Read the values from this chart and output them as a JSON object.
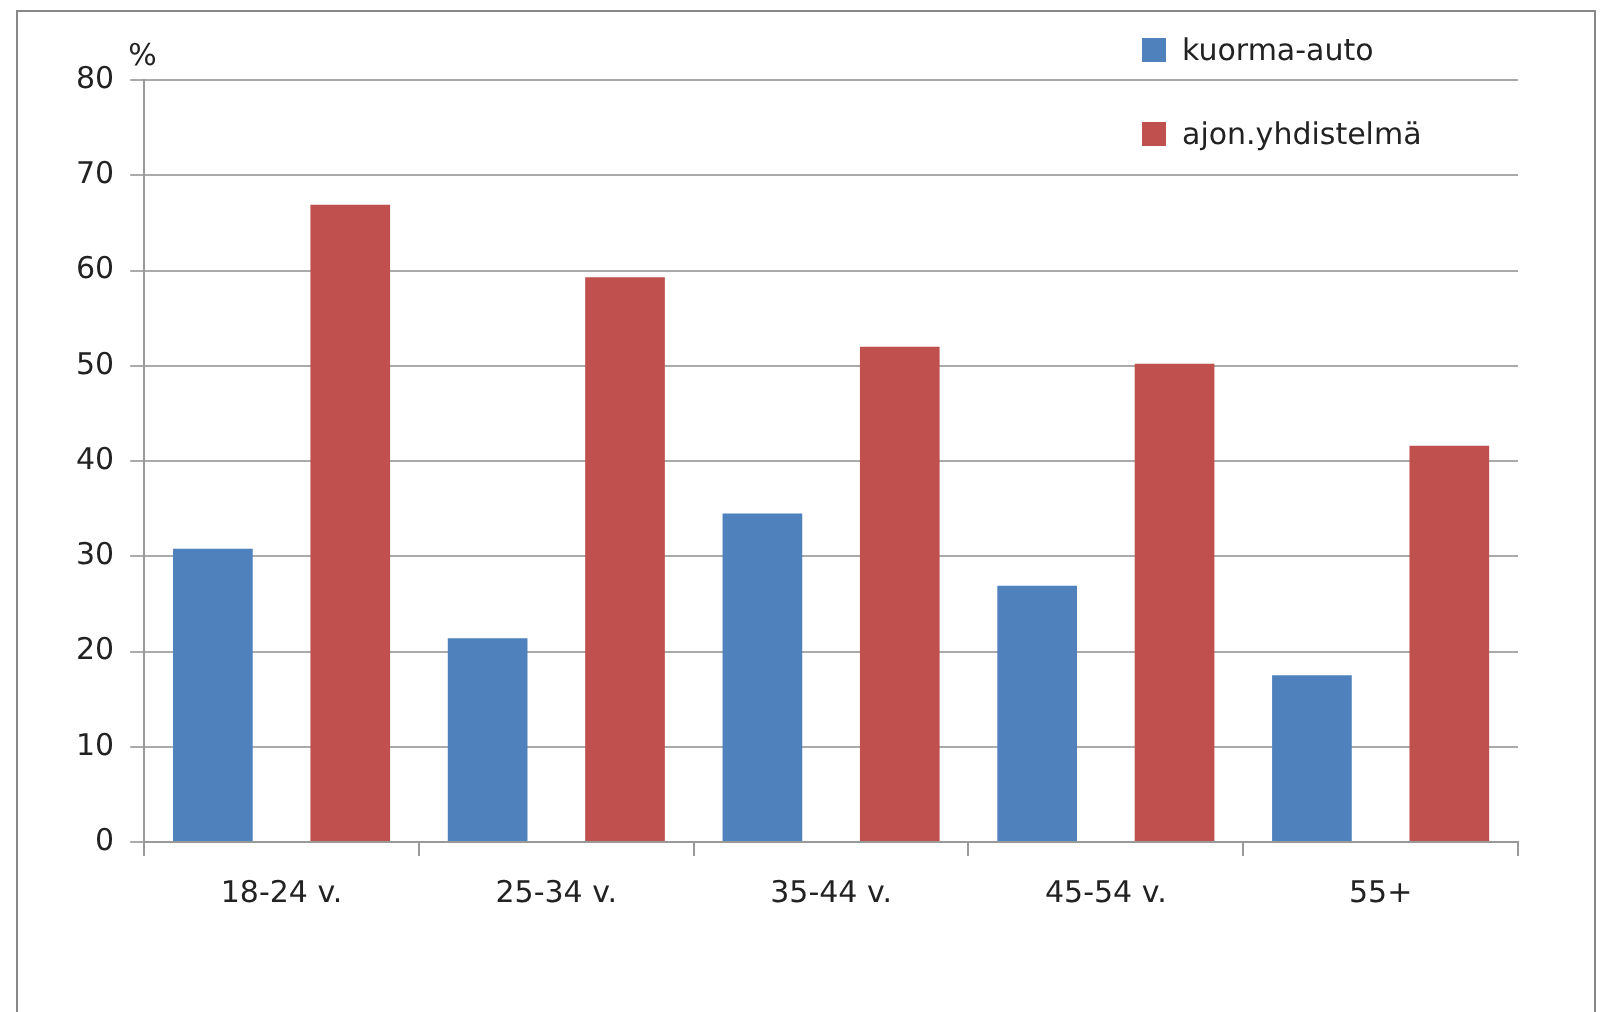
{
  "chart_data": {
    "type": "bar",
    "ylabel": "%",
    "categories": [
      "18-24 v.",
      "25-34 v.",
      "35-44 v.",
      "45-54 v.",
      "55+"
    ],
    "series": [
      {
        "name": "kuorma-auto",
        "color": "#4f81bd",
        "values": [
          30.8,
          21.4,
          34.5,
          26.9,
          17.5
        ]
      },
      {
        "name": "ajon.yhdistelmä",
        "color": "#c0504d",
        "values": [
          66.9,
          59.3,
          52.0,
          50.2,
          41.6
        ]
      }
    ],
    "ylim": [
      0,
      80
    ],
    "yticks": [
      0,
      10,
      20,
      30,
      40,
      50,
      60,
      70,
      80
    ],
    "grid": "y",
    "legend": "top right"
  }
}
